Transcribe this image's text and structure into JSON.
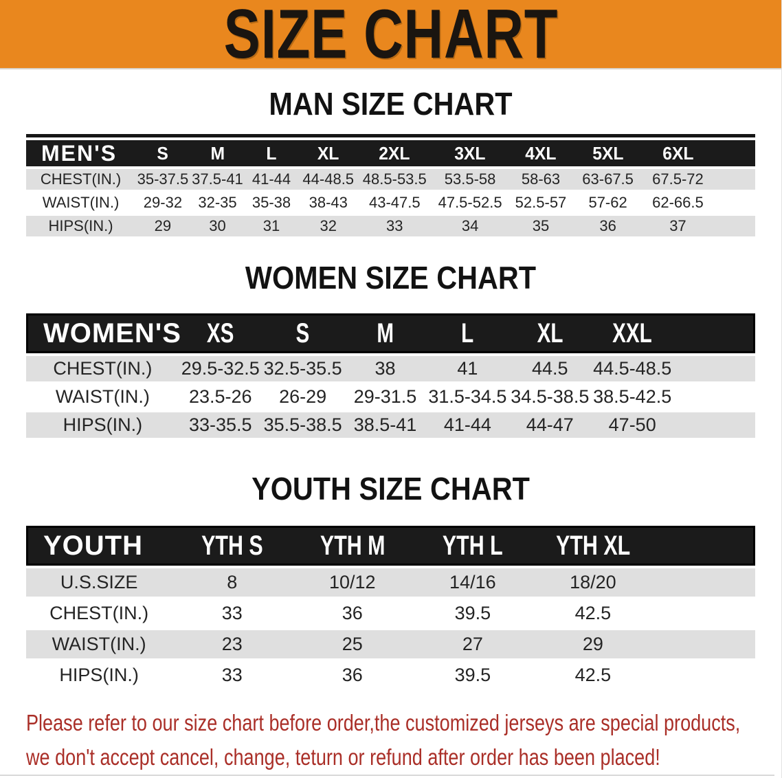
{
  "banner": {
    "title": "SIZE CHART",
    "bg_color": "#e9871e",
    "text_color": "#1a1510"
  },
  "colors": {
    "header_band": "#1b1b1b",
    "stripe_row": "#dfdfdf",
    "footer_text": "#aa2f28"
  },
  "sections": [
    {
      "title": "MAN SIZE CHART",
      "corner_label": "MEN'S",
      "columns": [
        "S",
        "M",
        "L",
        "XL",
        "2XL",
        "3XL",
        "4XL",
        "5XL",
        "6XL"
      ],
      "rows": [
        {
          "label": "CHEST(IN.)",
          "values": [
            "35-37.5",
            "37.5-41",
            "41-44",
            "44-48.5",
            "48.5-53.5",
            "53.5-58",
            "58-63",
            "63-67.5",
            "67.5-72"
          ]
        },
        {
          "label": "WAIST(IN.)",
          "values": [
            "29-32",
            "32-35",
            "35-38",
            "38-43",
            "43-47.5",
            "47.5-52.5",
            "52.5-57",
            "57-62",
            "62-66.5"
          ]
        },
        {
          "label": "HIPS(IN.)",
          "values": [
            "29",
            "30",
            "31",
            "32",
            "33",
            "34",
            "35",
            "36",
            "37"
          ]
        }
      ]
    },
    {
      "title": "WOMEN SIZE CHART",
      "corner_label": "WOMEN'S",
      "columns": [
        "XS",
        "S",
        "M",
        "L",
        "XL",
        "XXL"
      ],
      "rows": [
        {
          "label": "CHEST(IN.)",
          "values": [
            "29.5-32.5",
            "32.5-35.5",
            "38",
            "41",
            "44.5",
            "44.5-48.5"
          ]
        },
        {
          "label": "WAIST(IN.)",
          "values": [
            "23.5-26",
            "26-29",
            "29-31.5",
            "31.5-34.5",
            "34.5-38.5",
            "38.5-42.5"
          ]
        },
        {
          "label": "HIPS(IN.)",
          "values": [
            "33-35.5",
            "35.5-38.5",
            "38.5-41",
            "41-44",
            "44-47",
            "47-50"
          ]
        }
      ]
    },
    {
      "title": "YOUTH SIZE CHART",
      "corner_label": "YOUTH",
      "columns": [
        "YTH S",
        "YTH M",
        "YTH L",
        "YTH XL"
      ],
      "rows": [
        {
          "label": "U.S.SIZE",
          "values": [
            "8",
            "10/12",
            "14/16",
            "18/20"
          ]
        },
        {
          "label": "CHEST(IN.)",
          "values": [
            "33",
            "36",
            "39.5",
            "42.5"
          ]
        },
        {
          "label": "WAIST(IN.)",
          "values": [
            "23",
            "25",
            "27",
            "29"
          ]
        },
        {
          "label": "HIPS(IN.)",
          "values": [
            "33",
            "36",
            "39.5",
            "42.5"
          ]
        }
      ]
    }
  ],
  "footer": {
    "line1": "Please refer to our size chart before order,the customized jerseys are special products,",
    "line2": "we don't accept cancel, change, teturn or refund after order has been placed!"
  }
}
